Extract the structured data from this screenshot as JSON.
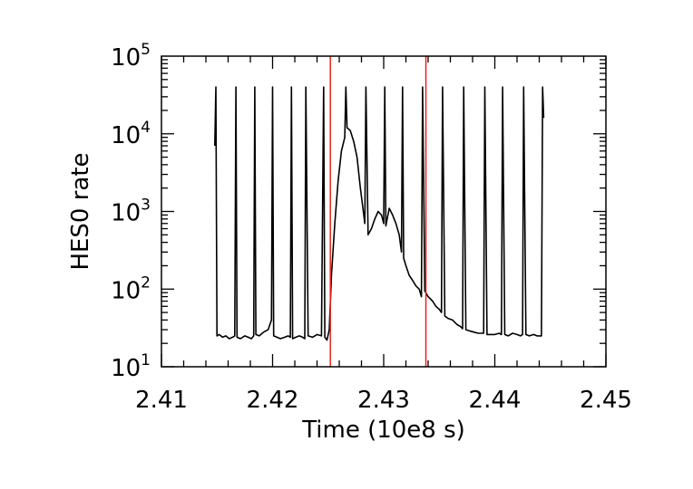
{
  "chart_data": {
    "type": "line",
    "title": "",
    "xlabel": "Time (10e8 s)",
    "ylabel": "HES0 rate",
    "xlim": [
      2.41,
      2.45
    ],
    "ylim": [
      10,
      100000
    ],
    "y_scale": "log",
    "x_ticks": [
      2.41,
      2.42,
      2.43,
      2.44,
      2.45
    ],
    "x_tick_labels": [
      "2.41",
      "2.42",
      "2.43",
      "2.44",
      "2.45"
    ],
    "y_ticks": [
      {
        "value": 10,
        "base": "10",
        "exp": "1"
      },
      {
        "value": 100,
        "base": "10",
        "exp": "2"
      },
      {
        "value": 1000,
        "base": "10",
        "exp": "3"
      },
      {
        "value": 10000,
        "base": "10",
        "exp": "4"
      },
      {
        "value": 100000,
        "base": "10",
        "exp": "5"
      }
    ],
    "grid": false,
    "vertical_markers": [
      {
        "x": 2.4252,
        "color": "#e8231c"
      },
      {
        "x": 2.4338,
        "color": "#e8231c"
      }
    ],
    "series": [
      {
        "color": "#000000",
        "x": [
          2.4148,
          2.4149,
          2.415,
          2.4152,
          2.4155,
          2.4158,
          2.4161,
          2.4164,
          2.4166,
          2.4167,
          2.4168,
          2.4171,
          2.4175,
          2.4178,
          2.4181,
          2.4183,
          2.4184,
          2.4185,
          2.4188,
          2.4192,
          2.4196,
          2.4199,
          2.42,
          2.4201,
          2.4204,
          2.4207,
          2.4211,
          2.4214,
          2.4216,
          2.4217,
          2.4218,
          2.4221,
          2.4224,
          2.4227,
          2.4229,
          2.423,
          2.4232,
          2.4236,
          2.424,
          2.4244,
          2.4246,
          2.4247,
          2.4249,
          2.4251,
          2.4253,
          2.4256,
          2.4259,
          2.4262,
          2.4265,
          2.4266,
          2.4267,
          2.427,
          2.4273,
          2.4276,
          2.4279,
          2.4281,
          2.4283,
          2.4284,
          2.4286,
          2.4289,
          2.4292,
          2.4295,
          2.4298,
          2.43,
          2.4301,
          2.4302,
          2.4305,
          2.4308,
          2.4311,
          2.4314,
          2.4316,
          2.4317,
          2.4318,
          2.432,
          2.4323,
          2.4326,
          2.4329,
          2.4332,
          2.4334,
          2.4335,
          2.4337,
          2.434,
          2.4344,
          2.4347,
          2.435,
          2.4352,
          2.4353,
          2.4355,
          2.4358,
          2.4362,
          2.4366,
          2.4369,
          2.4371,
          2.4372,
          2.4374,
          2.4377,
          2.4381,
          2.4385,
          2.4388,
          2.439,
          2.4391,
          2.4393,
          2.4396,
          2.44,
          2.4404,
          2.4406,
          2.4407,
          2.4409,
          2.4412,
          2.4416,
          2.442,
          2.4423,
          2.4425,
          2.4426,
          2.4428,
          2.4431,
          2.4435,
          2.4438,
          2.4441,
          2.4442,
          2.4443,
          2.4444
        ],
        "y": [
          7000,
          40000,
          25,
          26,
          24,
          25,
          23,
          24,
          25,
          40000,
          24,
          23,
          25,
          24,
          23,
          25,
          40000,
          26,
          25,
          28,
          30,
          40,
          40000,
          25,
          24,
          23,
          24,
          25,
          24,
          40000,
          23,
          24,
          25,
          24,
          23,
          40000,
          25,
          24,
          26,
          25,
          40000,
          24,
          22,
          30,
          150,
          700,
          2500,
          6000,
          9000,
          40000,
          12000,
          11000,
          8000,
          5000,
          2000,
          1200,
          700,
          40000,
          500,
          600,
          800,
          1000,
          900,
          700,
          40000,
          650,
          1100,
          900,
          700,
          500,
          300,
          40000,
          250,
          200,
          150,
          130,
          110,
          100,
          80,
          40000,
          95,
          80,
          70,
          60,
          55,
          50,
          40000,
          45,
          42,
          40,
          35,
          33,
          31,
          40000,
          30,
          29,
          28,
          27,
          27,
          27,
          40000,
          26,
          26,
          26,
          27,
          26,
          40000,
          26,
          25,
          27,
          26,
          25,
          26,
          40000,
          26,
          25,
          26,
          25,
          25,
          25,
          40000,
          16000
        ]
      }
    ]
  }
}
